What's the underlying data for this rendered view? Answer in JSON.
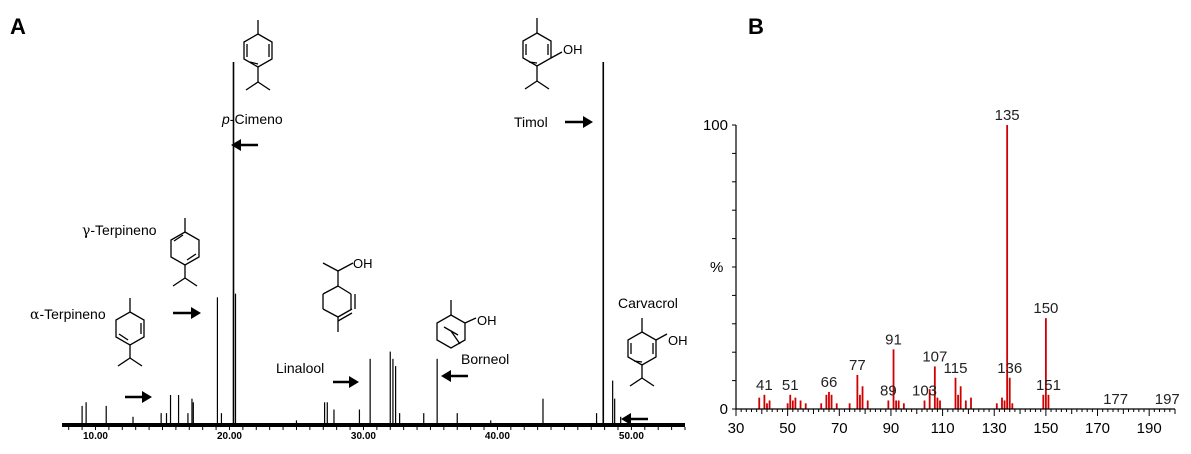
{
  "panels": {
    "a": "A",
    "b": "B"
  },
  "chart_data": [
    {
      "type": "line",
      "panel": "A",
      "xlim": [
        7.5,
        54
      ],
      "x_ticks": [
        "10.00",
        "20.00",
        "30.00",
        "40.00",
        "50.00"
      ],
      "x_tick_values": [
        10,
        20,
        30,
        40,
        50
      ],
      "ylim": [
        0,
        100
      ],
      "peaks": [
        {
          "x": 9.0,
          "y": 5
        },
        {
          "x": 9.3,
          "y": 6
        },
        {
          "x": 10.8,
          "y": 5
        },
        {
          "x": 12.8,
          "y": 2
        },
        {
          "x": 14.9,
          "y": 3
        },
        {
          "x": 15.3,
          "y": 3
        },
        {
          "x": 15.6,
          "y": 8
        },
        {
          "x": 16.2,
          "y": 8
        },
        {
          "x": 16.9,
          "y": 3
        },
        {
          "x": 17.2,
          "y": 7
        },
        {
          "x": 17.3,
          "y": 6
        },
        {
          "x": 19.1,
          "y": 35
        },
        {
          "x": 19.4,
          "y": 3
        },
        {
          "x": 20.3,
          "y": 100
        },
        {
          "x": 20.45,
          "y": 36
        },
        {
          "x": 25.0,
          "y": 1
        },
        {
          "x": 27.1,
          "y": 6
        },
        {
          "x": 27.3,
          "y": 6
        },
        {
          "x": 27.8,
          "y": 4
        },
        {
          "x": 29.7,
          "y": 4
        },
        {
          "x": 30.5,
          "y": 18
        },
        {
          "x": 32.0,
          "y": 20
        },
        {
          "x": 32.2,
          "y": 18
        },
        {
          "x": 32.4,
          "y": 16
        },
        {
          "x": 32.7,
          "y": 3
        },
        {
          "x": 34.5,
          "y": 3
        },
        {
          "x": 35.5,
          "y": 18
        },
        {
          "x": 37.0,
          "y": 3
        },
        {
          "x": 39.5,
          "y": 1
        },
        {
          "x": 43.4,
          "y": 7
        },
        {
          "x": 47.4,
          "y": 3
        },
        {
          "x": 47.9,
          "y": 100
        },
        {
          "x": 48.6,
          "y": 12
        },
        {
          "x": 48.75,
          "y": 7
        },
        {
          "x": 49.2,
          "y": 2
        }
      ],
      "annotations": [
        {
          "label_pre": "α",
          "label": "-Terpineno",
          "x": 15.6
        },
        {
          "label_pre": "γ",
          "label": "-Terpineno",
          "x": 19.1
        },
        {
          "label_italic": "p",
          "label": "-Cimeno",
          "x": 20.3
        },
        {
          "label": "Linalool",
          "x": 30.5
        },
        {
          "label": "Borneol",
          "x": 35.5
        },
        {
          "label": "Timol",
          "x": 47.9
        },
        {
          "label": "Carvacrol",
          "x": 48.6
        }
      ]
    },
    {
      "type": "bar",
      "panel": "B",
      "ylabel": "%",
      "xlim": [
        30,
        200
      ],
      "ylim": [
        0,
        100
      ],
      "x_ticks": [
        30,
        50,
        70,
        90,
        110,
        130,
        150,
        170,
        190
      ],
      "y_ticks": [
        0,
        100
      ],
      "bars": [
        {
          "x": 39,
          "y": 4
        },
        {
          "x": 41,
          "y": 5
        },
        {
          "x": 42,
          "y": 2
        },
        {
          "x": 43,
          "y": 3
        },
        {
          "x": 50,
          "y": 2
        },
        {
          "x": 51,
          "y": 5
        },
        {
          "x": 52,
          "y": 3
        },
        {
          "x": 53,
          "y": 4
        },
        {
          "x": 55,
          "y": 3
        },
        {
          "x": 57,
          "y": 2
        },
        {
          "x": 63,
          "y": 2
        },
        {
          "x": 65,
          "y": 5
        },
        {
          "x": 66,
          "y": 6
        },
        {
          "x": 67,
          "y": 5
        },
        {
          "x": 69,
          "y": 2
        },
        {
          "x": 74,
          "y": 2
        },
        {
          "x": 77,
          "y": 12
        },
        {
          "x": 78,
          "y": 5
        },
        {
          "x": 79,
          "y": 8
        },
        {
          "x": 81,
          "y": 3
        },
        {
          "x": 89,
          "y": 3
        },
        {
          "x": 91,
          "y": 21
        },
        {
          "x": 92,
          "y": 3
        },
        {
          "x": 93,
          "y": 3
        },
        {
          "x": 95,
          "y": 2
        },
        {
          "x": 103,
          "y": 3
        },
        {
          "x": 105,
          "y": 7
        },
        {
          "x": 107,
          "y": 15
        },
        {
          "x": 108,
          "y": 4
        },
        {
          "x": 109,
          "y": 3
        },
        {
          "x": 115,
          "y": 11
        },
        {
          "x": 116,
          "y": 5
        },
        {
          "x": 117,
          "y": 8
        },
        {
          "x": 119,
          "y": 3
        },
        {
          "x": 121,
          "y": 4
        },
        {
          "x": 131,
          "y": 2
        },
        {
          "x": 133,
          "y": 4
        },
        {
          "x": 134,
          "y": 3
        },
        {
          "x": 135,
          "y": 100
        },
        {
          "x": 136,
          "y": 11
        },
        {
          "x": 137,
          "y": 2
        },
        {
          "x": 149,
          "y": 5
        },
        {
          "x": 150,
          "y": 32
        },
        {
          "x": 151,
          "y": 5
        }
      ],
      "labels": [
        41,
        51,
        66,
        77,
        89,
        91,
        103,
        107,
        115,
        135,
        136,
        150,
        151,
        177,
        197
      ]
    }
  ],
  "structures": {
    "oh": "OH"
  },
  "colors": {
    "spectrum": "#d00000",
    "trace": "#000000"
  }
}
